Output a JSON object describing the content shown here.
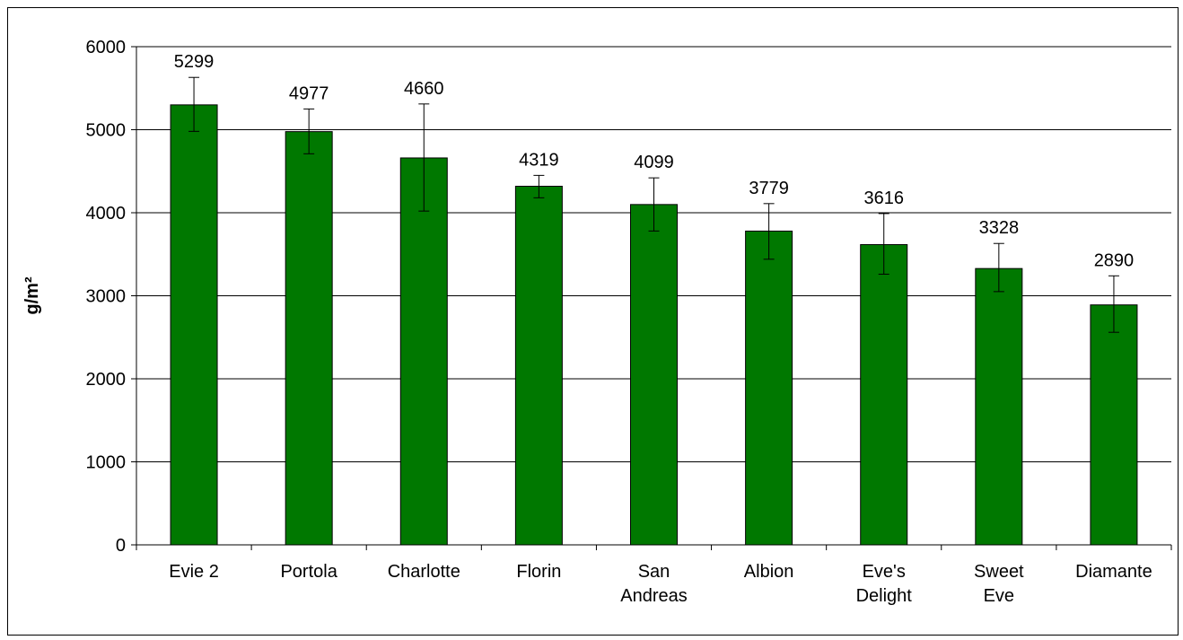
{
  "chart_data": {
    "type": "bar",
    "title": "",
    "xlabel": "",
    "ylabel": "g/m²",
    "ylim": [
      0,
      6000
    ],
    "yticks": [
      0,
      1000,
      2000,
      3000,
      4000,
      5000,
      6000
    ],
    "grid": true,
    "legend": "none",
    "categories": [
      [
        "Evie 2"
      ],
      [
        "Portola"
      ],
      [
        "Charlotte"
      ],
      [
        "Florin"
      ],
      [
        "San",
        "Andreas"
      ],
      [
        "Albion"
      ],
      [
        "Eve's",
        "Delight"
      ],
      [
        "Sweet",
        "Eve"
      ],
      [
        "Diamante"
      ]
    ],
    "values": [
      5299,
      4977,
      4660,
      4319,
      4099,
      3779,
      3616,
      3328,
      2890
    ],
    "data_labels": [
      "5299",
      "4977",
      "4660",
      "4319",
      "4099",
      "3779",
      "3616",
      "3328",
      "2890"
    ],
    "error_bars": [
      [
        4980,
        5630
      ],
      [
        4710,
        5250
      ],
      [
        4020,
        5310
      ],
      [
        4180,
        4450
      ],
      [
        3780,
        4420
      ],
      [
        3440,
        4110
      ],
      [
        3260,
        3990
      ],
      [
        3050,
        3630
      ],
      [
        2560,
        3240
      ]
    ],
    "bar_color": "#007800"
  }
}
